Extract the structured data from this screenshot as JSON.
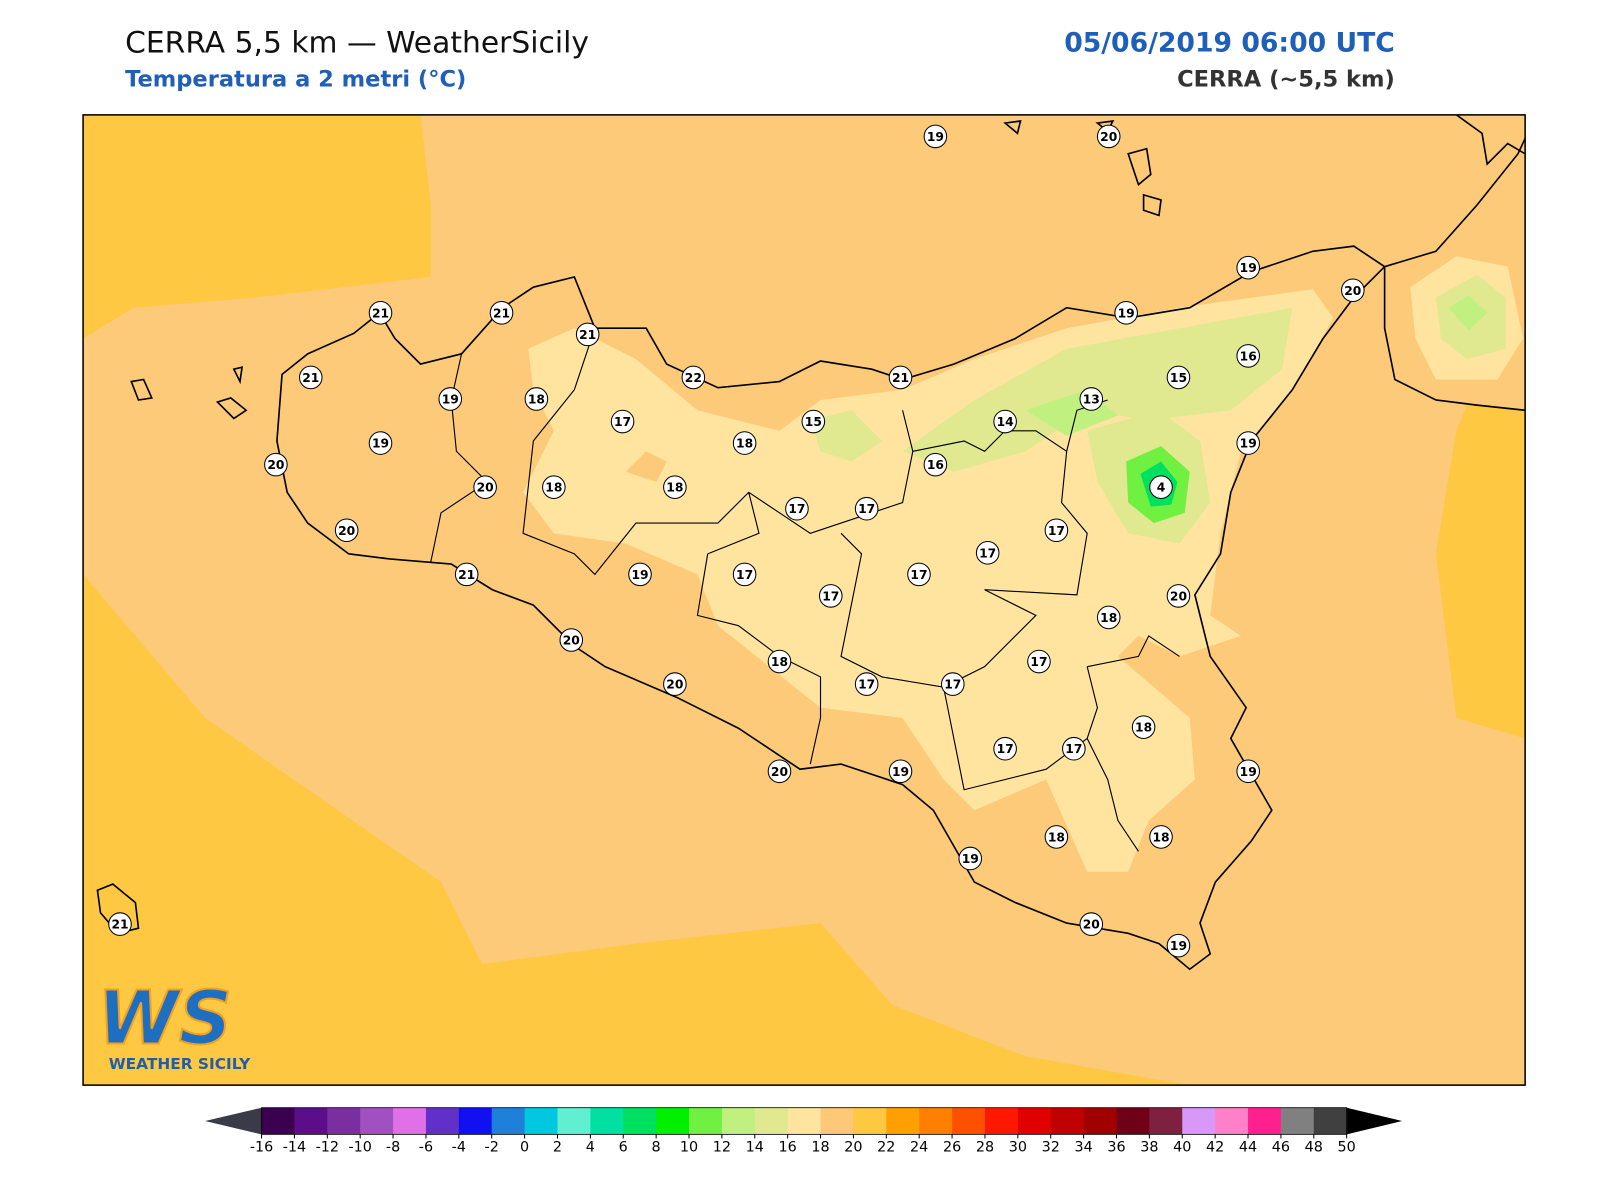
{
  "header": {
    "title": "CERRA 5,5 km — WeatherSicily",
    "subtitle": "Temperatura a 2 metri (°C)",
    "datetime": "05/06/2019 06:00 UTC",
    "source": "CERRA (~5,5 km)"
  },
  "stations": [
    19,
    20,
    19,
    20,
    21,
    21,
    21,
    19,
    21,
    22,
    21,
    16,
    15,
    19,
    18,
    13,
    17,
    14,
    15,
    18,
    19,
    19,
    20,
    16,
    20,
    18,
    18,
    4,
    17,
    17,
    17,
    20,
    17,
    21,
    19,
    17,
    17,
    17,
    20,
    18,
    20,
    17,
    18,
    20,
    17,
    17,
    18,
    17,
    17,
    20,
    19,
    19,
    18,
    18,
    19,
    20,
    21,
    19
  ],
  "colorbar": {
    "ticks": [
      -16,
      -14,
      -12,
      -10,
      -8,
      -6,
      -4,
      -2,
      0,
      2,
      4,
      6,
      8,
      10,
      12,
      14,
      16,
      18,
      20,
      22,
      24,
      26,
      28,
      30,
      32,
      34,
      36,
      38,
      40,
      42,
      44,
      46,
      48,
      50
    ],
    "colors": [
      "#3c0050",
      "#5c0d8a",
      "#7a2fa0",
      "#a050c0",
      "#e070e8",
      "#6030c8",
      "#1010f0",
      "#1e80d8",
      "#00c8e0",
      "#60f0d0",
      "#00e0a0",
      "#00e060",
      "#00f000",
      "#70f040",
      "#c0f080",
      "#e0e890",
      "#ffe4a0",
      "#fdc878",
      "#ffc840",
      "#ffa000",
      "#ff8000",
      "#ff5000",
      "#ff1800",
      "#e00000",
      "#c00000",
      "#a00000",
      "#700018",
      "#802040",
      "#d898f8",
      "#ff80c8",
      "#ff2090",
      "#808080",
      "#404040"
    ],
    "under_color": "#3a3a48",
    "over_color": "#000000"
  },
  "logo": {
    "mark": "WS",
    "name": "WEATHER SICILY"
  }
}
